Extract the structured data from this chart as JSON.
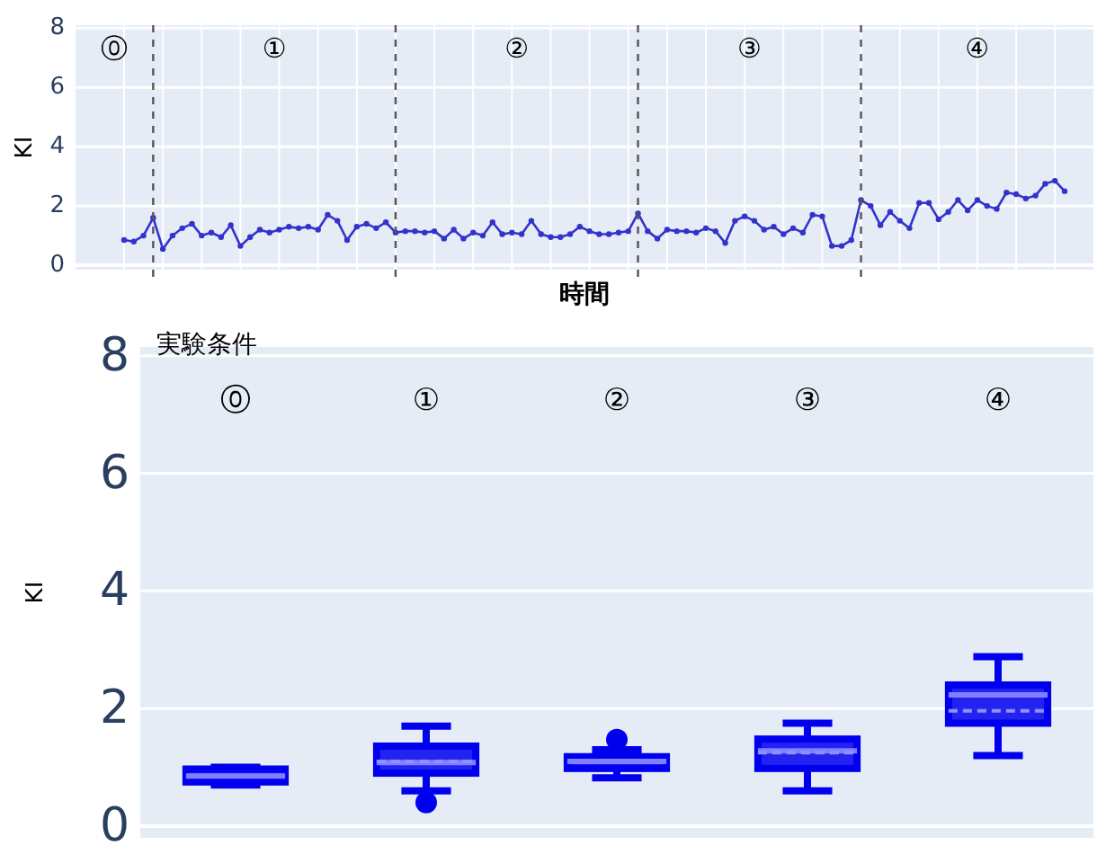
{
  "chart_data": [
    {
      "type": "line",
      "xlabel": "時間",
      "ylabel": "KI",
      "categories": [
        null,
        null,
        null,
        null,
        null,
        null,
        null,
        null,
        null,
        null,
        null,
        null,
        null,
        null,
        null,
        null,
        null,
        null,
        null,
        null,
        null,
        null,
        null,
        null,
        null,
        null,
        null,
        null,
        null,
        null,
        null,
        null,
        null,
        null,
        null,
        null,
        null,
        null,
        null,
        null,
        null,
        null,
        null,
        null,
        null,
        null,
        null,
        null,
        null,
        null,
        null,
        null,
        null,
        null,
        null,
        null,
        null,
        null,
        null,
        null,
        null,
        null,
        null,
        null,
        null,
        null,
        null,
        null,
        null,
        null,
        null,
        null,
        null,
        null,
        null,
        null,
        null,
        null,
        null,
        null,
        null,
        null,
        null,
        null,
        null,
        null,
        null,
        null,
        null,
        null,
        null,
        null,
        null,
        null,
        null,
        null,
        null,
        null
      ],
      "series": [
        {
          "color": "#3333cc",
          "values": [
            0.85,
            0.8,
            1.0,
            1.6,
            0.55,
            1.0,
            1.25,
            1.4,
            1.0,
            1.1,
            0.95,
            1.35,
            0.65,
            0.95,
            1.2,
            1.1,
            1.2,
            1.3,
            1.25,
            1.3,
            1.2,
            1.7,
            1.5,
            0.85,
            1.3,
            1.4,
            1.25,
            1.45,
            1.1,
            1.15,
            1.15,
            1.1,
            1.15,
            0.9,
            1.2,
            0.9,
            1.1,
            1.0,
            1.45,
            1.05,
            1.1,
            1.05,
            1.5,
            1.05,
            0.95,
            0.95,
            1.05,
            1.3,
            1.15,
            1.05,
            1.05,
            1.1,
            1.15,
            1.75,
            1.15,
            0.9,
            1.2,
            1.15,
            1.15,
            1.1,
            1.25,
            1.15,
            0.75,
            1.5,
            1.65,
            1.5,
            1.2,
            1.3,
            1.05,
            1.25,
            1.1,
            1.7,
            1.65,
            0.65,
            0.65,
            0.85,
            2.2,
            2.0,
            1.35,
            1.8,
            1.5,
            1.25,
            2.1,
            2.1,
            1.55,
            1.8,
            2.2,
            1.85,
            2.2,
            2.0,
            1.9,
            2.45,
            2.4,
            2.25,
            2.35,
            2.75,
            2.85,
            2.5
          ]
        }
      ],
      "marker": "circle",
      "line_style": "solid",
      "ylim": [
        -0.15,
        8.1
      ],
      "yticks": [
        0,
        2,
        4,
        6,
        8
      ],
      "grid": true,
      "tick_labels": "y",
      "annotations": [
        "⓪",
        "①",
        "②",
        "③",
        "④"
      ]
    },
    {
      "type": "box",
      "xlabel": "実験条件",
      "ylabel": "KI",
      "categories": [
        "⓪",
        "①",
        "②",
        "③",
        "④"
      ],
      "color": "#0000ee",
      "boxes": [
        {
          "low": 0.7,
          "q1": 0.75,
          "median": 0.85,
          "q3": 0.97,
          "high": 1.0
        },
        {
          "low": 0.6,
          "q1": 0.9,
          "median": 1.08,
          "q3": 1.36,
          "high": 1.7,
          "mean": 1.1,
          "outliers": [
            0.4
          ]
        },
        {
          "low": 0.82,
          "q1": 0.98,
          "median": 1.1,
          "q3": 1.18,
          "high": 1.3,
          "outliers": [
            1.47
          ]
        },
        {
          "low": 0.6,
          "q1": 0.98,
          "median": 1.28,
          "q3": 1.48,
          "high": 1.75,
          "mean": 1.25
        },
        {
          "low": 1.2,
          "q1": 1.75,
          "median": 2.23,
          "q3": 2.4,
          "high": 2.88,
          "mean": 1.96
        }
      ],
      "ylim": [
        -0.2,
        8.15
      ],
      "yticks": [
        0,
        2,
        4,
        6,
        8
      ],
      "grid": "y"
    }
  ]
}
